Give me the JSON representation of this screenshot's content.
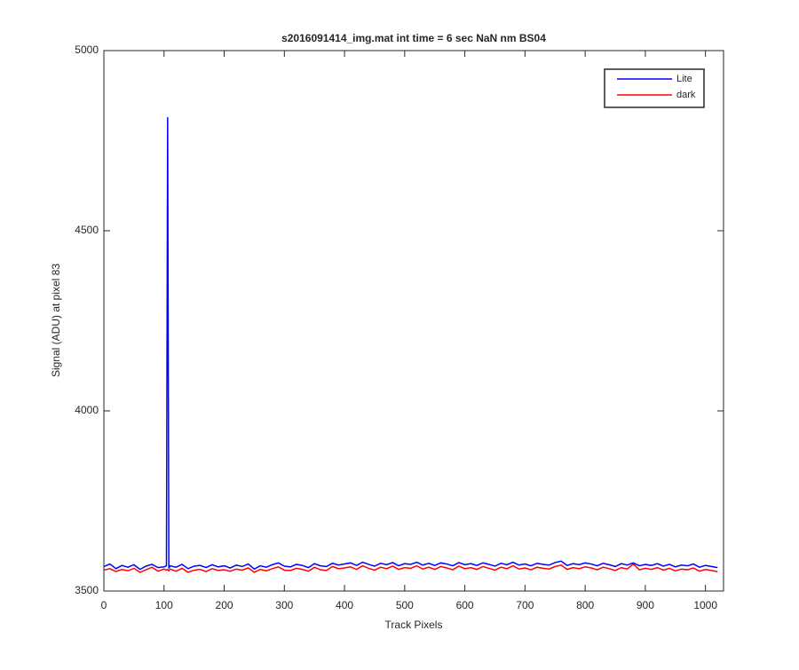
{
  "chart_data": {
    "type": "line",
    "title": "s2016091414_img.mat int time = 6 sec  NaN nm BS04",
    "x_label": "Track Pixels",
    "y_label": "Signal (ADU) at pixel 83",
    "x": [
      0,
      10,
      20,
      30,
      40,
      50,
      60,
      70,
      80,
      90,
      100,
      104,
      106,
      108,
      110,
      120,
      130,
      140,
      150,
      160,
      170,
      180,
      190,
      200,
      210,
      220,
      230,
      240,
      250,
      260,
      270,
      280,
      290,
      300,
      310,
      320,
      330,
      340,
      350,
      360,
      370,
      380,
      390,
      400,
      410,
      420,
      430,
      440,
      450,
      460,
      470,
      480,
      490,
      500,
      510,
      520,
      530,
      540,
      550,
      560,
      570,
      580,
      590,
      600,
      610,
      620,
      630,
      640,
      650,
      660,
      670,
      680,
      690,
      700,
      710,
      720,
      730,
      740,
      750,
      760,
      770,
      780,
      790,
      800,
      810,
      820,
      830,
      840,
      850,
      860,
      870,
      880,
      890,
      900,
      910,
      920,
      930,
      940,
      950,
      960,
      970,
      980,
      990,
      1000,
      1010,
      1020
    ],
    "series": [
      {
        "name": "Lite",
        "color": "#0000ff",
        "values": [
          3568,
          3575,
          3562,
          3571,
          3566,
          3573,
          3560,
          3569,
          3574,
          3565,
          3567,
          3570,
          4815,
          3563,
          3570,
          3566,
          3574,
          3562,
          3569,
          3571,
          3565,
          3573,
          3567,
          3570,
          3564,
          3572,
          3568,
          3575,
          3561,
          3570,
          3566,
          3573,
          3578,
          3569,
          3567,
          3574,
          3571,
          3565,
          3576,
          3570,
          3568,
          3577,
          3572,
          3575,
          3578,
          3571,
          3580,
          3574,
          3569,
          3577,
          3573,
          3579,
          3570,
          3576,
          3574,
          3580,
          3572,
          3577,
          3571,
          3578,
          3575,
          3570,
          3579,
          3573,
          3576,
          3571,
          3578,
          3574,
          3569,
          3577,
          3573,
          3580,
          3572,
          3575,
          3570,
          3577,
          3574,
          3572,
          3579,
          3583,
          3571,
          3576,
          3573,
          3578,
          3575,
          3570,
          3577,
          3573,
          3568,
          3576,
          3572,
          3578,
          3570,
          3574,
          3571,
          3576,
          3569,
          3574,
          3567,
          3572,
          3570,
          3575,
          3566,
          3571,
          3568,
          3565
        ]
      },
      {
        "name": "dark",
        "color": "#ff0000",
        "values": [
          3558,
          3562,
          3554,
          3560,
          3556,
          3563,
          3552,
          3559,
          3566,
          3555,
          3561,
          3558,
          3560,
          3556,
          3561,
          3555,
          3563,
          3552,
          3558,
          3560,
          3554,
          3562,
          3557,
          3559,
          3555,
          3561,
          3558,
          3564,
          3552,
          3560,
          3556,
          3562,
          3567,
          3558,
          3557,
          3563,
          3560,
          3555,
          3566,
          3559,
          3557,
          3568,
          3562,
          3564,
          3567,
          3560,
          3570,
          3563,
          3558,
          3566,
          3562,
          3569,
          3560,
          3565,
          3563,
          3570,
          3561,
          3566,
          3560,
          3568,
          3564,
          3559,
          3569,
          3562,
          3565,
          3560,
          3568,
          3563,
          3558,
          3566,
          3562,
          3570,
          3561,
          3564,
          3559,
          3566,
          3563,
          3561,
          3568,
          3572,
          3560,
          3565,
          3562,
          3567,
          3564,
          3559,
          3566,
          3562,
          3557,
          3565,
          3561,
          3575,
          3559,
          3563,
          3560,
          3565,
          3558,
          3563,
          3556,
          3561,
          3559,
          3564,
          3555,
          3560,
          3557,
          3554
        ]
      }
    ],
    "xlim": [
      0,
      1030
    ],
    "xticks": [
      0,
      100,
      200,
      300,
      400,
      500,
      600,
      700,
      800,
      900,
      1000
    ],
    "ylim": [
      3500,
      5000
    ],
    "yticks": [
      3500,
      4000,
      4500,
      5000
    ],
    "grid": false,
    "legend": "northeast"
  }
}
